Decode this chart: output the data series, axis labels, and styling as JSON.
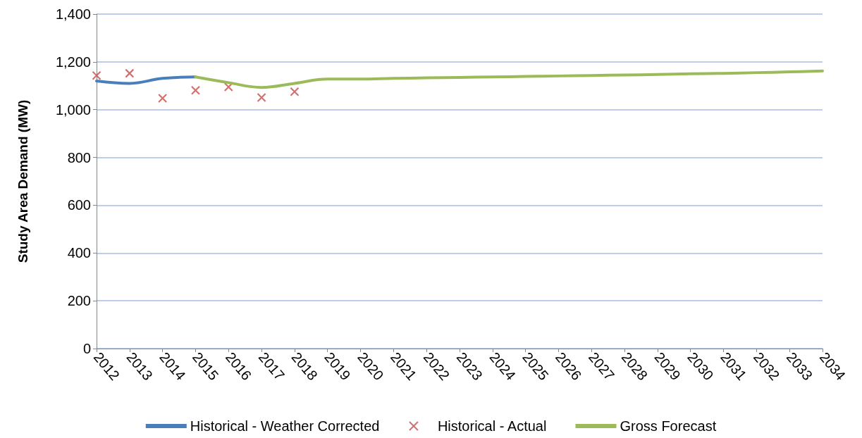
{
  "chart_data": {
    "type": "line",
    "ylabel": "Study Area Demand (MW)",
    "categories": [
      "2012",
      "2013",
      "2014",
      "2015",
      "2016",
      "2017",
      "2018",
      "2019",
      "2020",
      "2021",
      "2022",
      "2023",
      "2024",
      "2025",
      "2026",
      "2027",
      "2028",
      "2029",
      "2030",
      "2031",
      "2032",
      "2033",
      "2034"
    ],
    "series": [
      {
        "name": "Historical - Weather Corrected",
        "color": "#4a7ebb",
        "marker": "none",
        "values": [
          1120,
          1110,
          1131,
          1137,
          null,
          null,
          null,
          null,
          null,
          null,
          null,
          null,
          null,
          null,
          null,
          null,
          null,
          null,
          null,
          null,
          null,
          null,
          null
        ]
      },
      {
        "name": "Historical - Actual",
        "color": "#c0504d",
        "type": "scatter",
        "marker": "cross",
        "values": [
          1143,
          1152,
          1048,
          1081,
          1095,
          1051,
          1075,
          null,
          null,
          null,
          null,
          null,
          null,
          null,
          null,
          null,
          null,
          null,
          null,
          null,
          null,
          null,
          null
        ]
      },
      {
        "name": "Gross Forecast",
        "color": "#9bbb59",
        "marker": "none",
        "values": [
          null,
          null,
          null,
          1137,
          1113,
          1093,
          1110,
          1128,
          1128,
          1131,
          1133,
          1135,
          1137,
          1139,
          1141,
          1143,
          1145,
          1147,
          1150,
          1152,
          1155,
          1158,
          1162
        ]
      }
    ],
    "ylim": [
      0,
      1400
    ],
    "yticks": [
      0,
      200,
      400,
      600,
      800,
      {
        "value": 1000,
        "label": "1,000"
      },
      {
        "value": 1200,
        "label": "1,200"
      },
      {
        "value": 1400,
        "label": "1,400"
      }
    ],
    "grid": "y",
    "legend": "bottom"
  }
}
